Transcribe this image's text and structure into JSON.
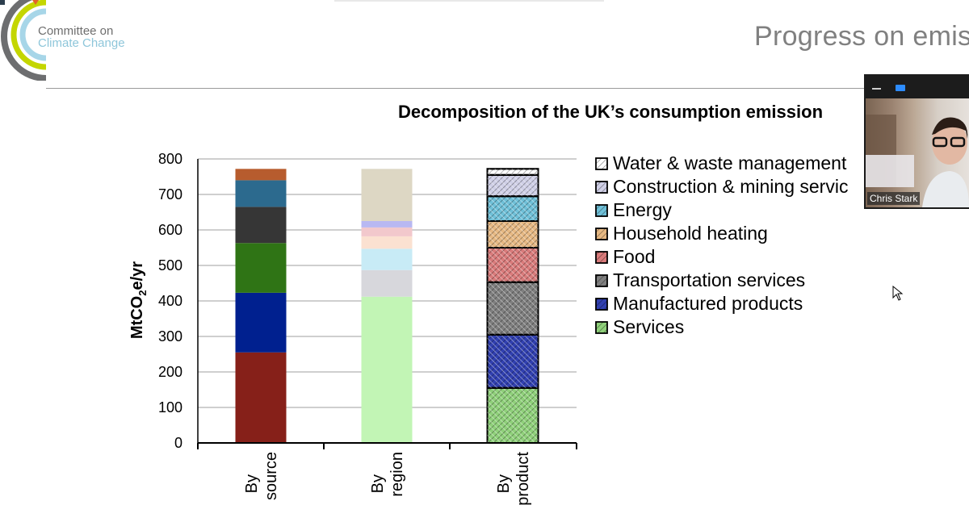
{
  "logo": {
    "line1": "Committee on",
    "line2": "Climate Change"
  },
  "slide": {
    "title": "Progress on emis"
  },
  "video": {
    "participant_name": "Chris Stark",
    "toolbar_icons": [
      "minimize-icon",
      "share-screen-icon"
    ]
  },
  "chart_data": {
    "type": "bar",
    "stacked": true,
    "title": "Decomposition of the UK’s consumption emission",
    "ylabel": "MtCO2e/yr",
    "ylim": [
      0,
      800
    ],
    "yticks": [
      0,
      100,
      200,
      300,
      400,
      500,
      600,
      700,
      800
    ],
    "grid": true,
    "legend_position": "right",
    "categories": [
      [
        "By",
        "source"
      ],
      [
        "By",
        "region"
      ],
      [
        "By",
        "product"
      ]
    ],
    "bars": [
      {
        "category": "By source",
        "segments": [
          {
            "value": 255,
            "color": "#862019"
          },
          {
            "value": 168,
            "color": "#00208f"
          },
          {
            "value": 140,
            "color": "#2f7415"
          },
          {
            "value": 102,
            "color": "#363636"
          },
          {
            "value": 75,
            "color": "#2c6a8e"
          },
          {
            "value": 32,
            "color": "#b75c2e"
          }
        ]
      },
      {
        "category": "By region",
        "segments": [
          {
            "value": 412,
            "color": "#c2f5b5"
          },
          {
            "value": 75,
            "color": "#d7d7dc"
          },
          {
            "value": 60,
            "color": "#c8ebf6"
          },
          {
            "value": 35,
            "color": "#fbe1d1"
          },
          {
            "value": 25,
            "color": "#f2c8cc"
          },
          {
            "value": 18,
            "color": "#b8b8f2"
          },
          {
            "value": 147,
            "color": "#ddd7c4"
          }
        ]
      },
      {
        "category": "By product",
        "segments": [
          {
            "value": 155,
            "color": "#8fd07a",
            "name": "Services"
          },
          {
            "value": 150,
            "color": "#3140b0",
            "name": "Manufactured products"
          },
          {
            "value": 148,
            "color": "#7f7f7f",
            "name": "Transportation services"
          },
          {
            "value": 97,
            "color": "#d97b7b",
            "name": "Food"
          },
          {
            "value": 75,
            "color": "#e6b883",
            "name": "Household heating"
          },
          {
            "value": 70,
            "color": "#6fc0d8",
            "name": "Energy"
          },
          {
            "value": 60,
            "color": "#cfcfe6",
            "name": "Construction & mining services"
          },
          {
            "value": 17,
            "color": "#ffffff",
            "name": "Water & waste management"
          }
        ]
      }
    ],
    "legend": [
      {
        "label": "Water & waste management",
        "color": "#ffffff"
      },
      {
        "label": "Construction & mining servic",
        "color": "#cfcfe6"
      },
      {
        "label": "Energy",
        "color": "#6fc0d8"
      },
      {
        "label": "Household heating",
        "color": "#e6b883"
      },
      {
        "label": "Food",
        "color": "#d97b7b"
      },
      {
        "label": "Transportation services",
        "color": "#7f7f7f"
      },
      {
        "label": "Manufactured products",
        "color": "#3140b0"
      },
      {
        "label": "Services",
        "color": "#8fd07a"
      }
    ]
  }
}
